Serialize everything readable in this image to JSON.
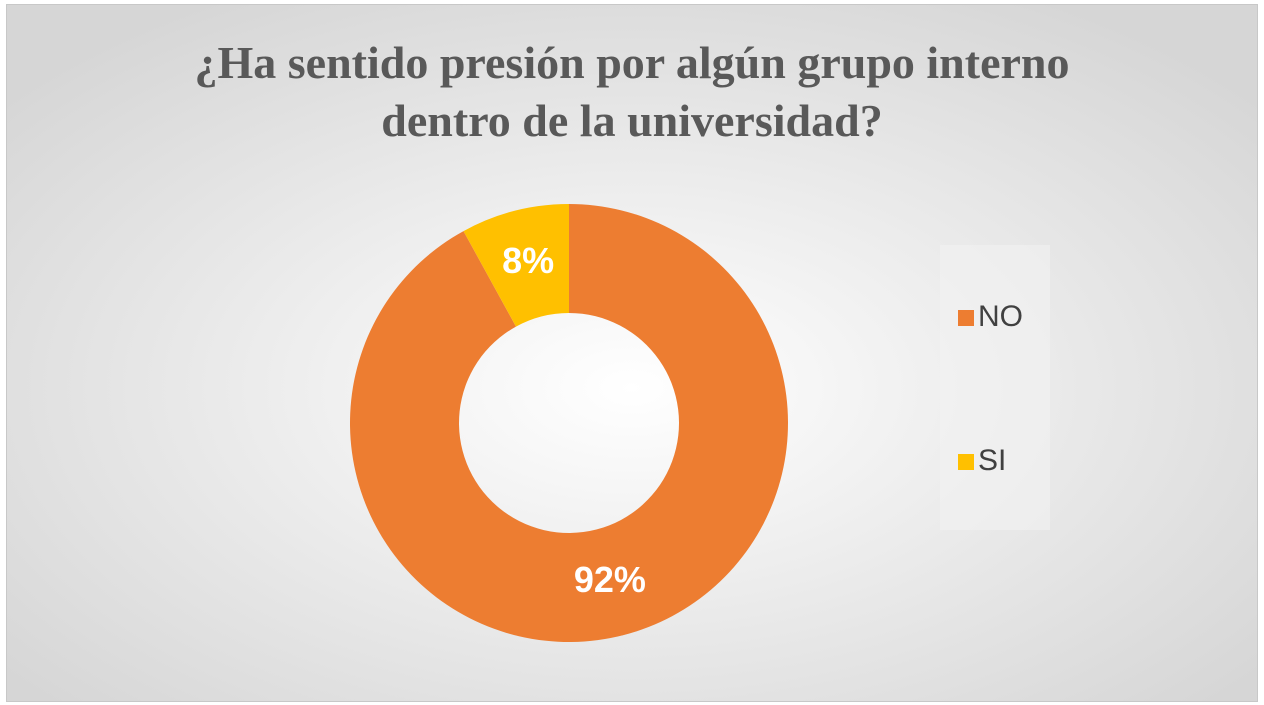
{
  "chart_data": {
    "type": "donut",
    "title": "¿Ha sentido presión por algún grupo interno dentro de la universidad?",
    "categories": [
      "NO",
      "SI"
    ],
    "values": [
      92,
      8
    ],
    "value_labels": [
      "92%",
      "8%"
    ],
    "colors": [
      "#ed7d31",
      "#ffc000"
    ],
    "legend": "right"
  }
}
